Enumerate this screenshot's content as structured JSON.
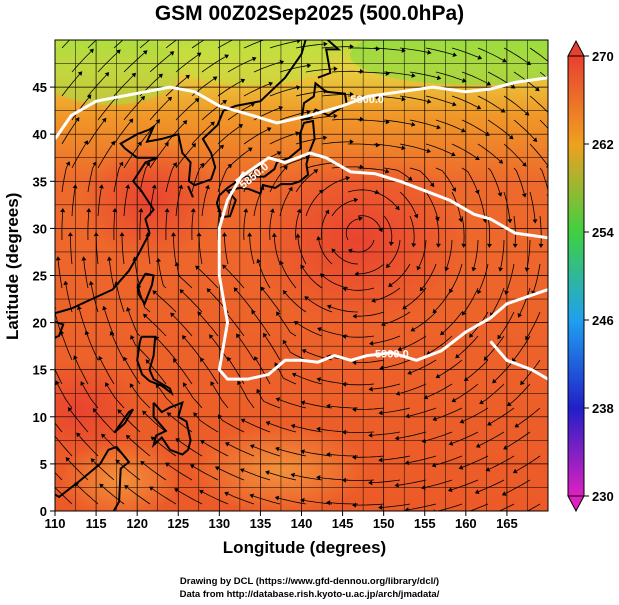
{
  "title": "GSM 00Z02Sep2025 (500.0hPa)",
  "axes": {
    "xlabel": "Longitude (degrees)",
    "ylabel": "Latitude  (degrees)",
    "x_ticks": [
      "110",
      "115",
      "120",
      "125",
      "130",
      "135",
      "140",
      "145",
      "150",
      "155",
      "160",
      "165"
    ],
    "y_ticks": [
      "0",
      "5",
      "10",
      "15",
      "20",
      "25",
      "30",
      "35",
      "40",
      "45"
    ]
  },
  "colorbar": {
    "ticks": [
      "230",
      "238",
      "246",
      "254",
      "262",
      "270"
    ],
    "colors": {
      "c230": "#e020c0",
      "c238": "#2020c8",
      "c246": "#20a0f0",
      "c254": "#40d040",
      "c262": "#f0a020",
      "c270": "#e84030"
    }
  },
  "contours": [
    {
      "label": "5800.0"
    },
    {
      "label": "5850.0"
    },
    {
      "label": "5900.0"
    }
  ],
  "credits": {
    "line1": "Drawing by DCL (https://www.gfd-dennou.org/library/dcl/)",
    "line2": "Data from http://database.rish.kyoto-u.ac.jp/arch/jmadata/"
  },
  "chart_data": {
    "type": "heatmap",
    "title": "GSM 00Z02Sep2025 (500.0hPa)",
    "xlabel": "Longitude (degrees)",
    "ylabel": "Latitude  (degrees)",
    "xlim": [
      110,
      170
    ],
    "ylim": [
      0,
      50
    ],
    "color_range": [
      230,
      270
    ],
    "contour_levels": [
      5800,
      5850,
      5900
    ],
    "field_samples": [
      {
        "lon": 110,
        "lat": 45,
        "value": 257
      },
      {
        "lon": 125,
        "lat": 45,
        "value": 256
      },
      {
        "lon": 140,
        "lat": 48,
        "value": 258
      },
      {
        "lon": 165,
        "lat": 47,
        "value": 255
      },
      {
        "lon": 115,
        "lat": 35,
        "value": 264
      },
      {
        "lon": 148,
        "lat": 32,
        "value": 267
      },
      {
        "lon": 112,
        "lat": 12,
        "value": 268
      },
      {
        "lon": 140,
        "lat": 15,
        "value": 266
      },
      {
        "lon": 165,
        "lat": 20,
        "value": 265
      },
      {
        "lon": 125,
        "lat": 5,
        "value": 263
      }
    ]
  }
}
